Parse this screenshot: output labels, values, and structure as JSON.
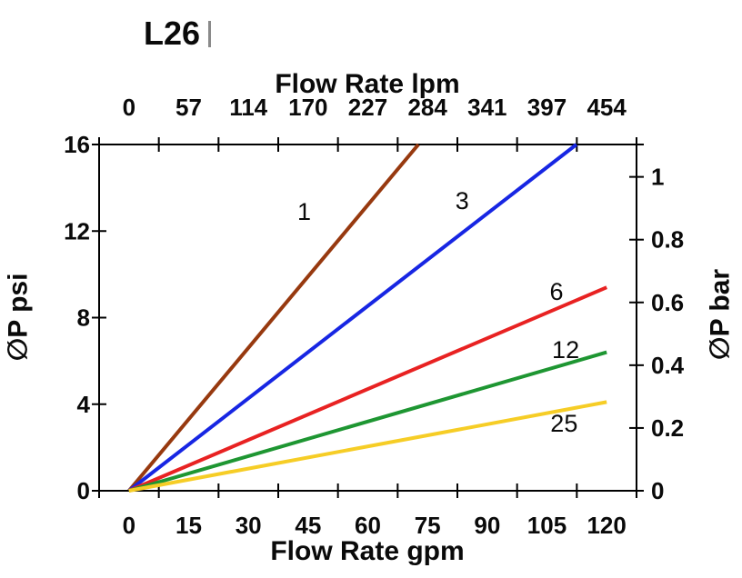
{
  "title": "L26",
  "colors": {
    "axis": "#000000",
    "background": "#ffffff",
    "cursor_bar": "#8a8a8a"
  },
  "chart_data": {
    "type": "line",
    "title": "L26",
    "grid": false,
    "legend": "inline-labels-on-lines",
    "x_bottom": {
      "label": "Flow Rate gpm",
      "labels": [
        "0",
        "15",
        "30",
        "45",
        "60",
        "75",
        "90",
        "105",
        "120"
      ],
      "values": [
        0,
        15,
        30,
        45,
        60,
        75,
        90,
        105,
        120
      ],
      "range": [
        0,
        120
      ],
      "tick_style": "labels-centered-between-ticks"
    },
    "x_top": {
      "label": "Flow Rate lpm",
      "labels": [
        "0",
        "57",
        "114",
        "170",
        "227",
        "284",
        "341",
        "397",
        "454"
      ],
      "values": [
        0,
        57,
        114,
        170,
        227,
        284,
        341,
        397,
        454
      ],
      "tick_style": "labels-centered-between-ticks"
    },
    "y_left": {
      "label": "∅P psi",
      "labels": [
        "0",
        "4",
        "8",
        "12",
        "16"
      ],
      "values": [
        0,
        4,
        8,
        12,
        16
      ],
      "range": [
        0,
        16
      ]
    },
    "y_right": {
      "label": "∅P bar",
      "labels": [
        "0",
        "0.2",
        "0.4",
        "0.6",
        "0.8",
        "1"
      ],
      "values": [
        0,
        0.2,
        0.4,
        0.6,
        0.8,
        1
      ],
      "psi_per_bar": 14.504
    },
    "series": [
      {
        "name": "1",
        "color": "#97390f",
        "points_gpm_psi": [
          [
            0,
            0
          ],
          [
            72.7,
            16
          ]
        ],
        "label_at_gpm_psi": [
          44.0,
          12.9
        ]
      },
      {
        "name": "3",
        "color": "#1726e3",
        "points_gpm_psi": [
          [
            0,
            0
          ],
          [
            112.4,
            16
          ]
        ],
        "label_at_gpm_psi": [
          83.7,
          13.4
        ]
      },
      {
        "name": "6",
        "color": "#e82222",
        "points_gpm_psi": [
          [
            0,
            0
          ],
          [
            120,
            9.4
          ]
        ],
        "label_at_gpm_psi": [
          107.4,
          9.2
        ]
      },
      {
        "name": "12",
        "color": "#1e9632",
        "points_gpm_psi": [
          [
            0,
            0
          ],
          [
            120,
            6.4
          ]
        ],
        "label_at_gpm_psi": [
          109.7,
          6.5
        ]
      },
      {
        "name": "25",
        "color": "#f6cd26",
        "points_gpm_psi": [
          [
            0,
            0
          ],
          [
            120,
            4.1
          ]
        ],
        "label_at_gpm_psi": [
          109.3,
          3.1
        ]
      }
    ]
  }
}
